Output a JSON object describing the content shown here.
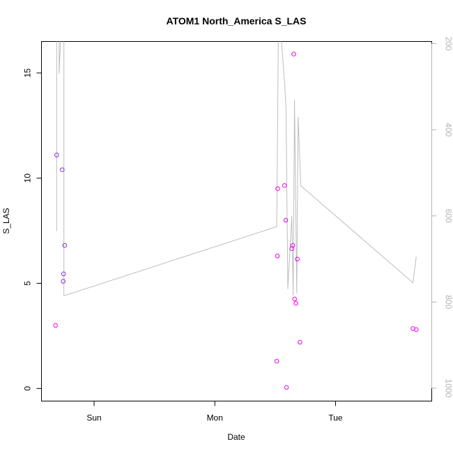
{
  "chart_data": {
    "type": "scatter",
    "title": "ATOM1 North_America S_LAS",
    "xlabel": "Date",
    "ylabel": "S_LAS",
    "x_ticks": [
      {
        "value": 0.25,
        "label": "Sun"
      },
      {
        "value": 1.25,
        "label": "Mon"
      },
      {
        "value": 2.25,
        "label": "Tue"
      }
    ],
    "xlim": [
      -0.186,
      3.047
    ],
    "ylim": [
      -0.6,
      16.5
    ],
    "y_ticks": [
      0,
      5,
      10,
      15
    ],
    "y2_ticks": [
      200,
      400,
      600,
      800,
      1000
    ],
    "y2lim": [
      1030,
      195
    ],
    "y2_inverted": true,
    "colors": {
      "line": "#bdbdbd",
      "point_a": "#8a2be2",
      "point_b": "#ee00ee"
    },
    "points": [
      {
        "x": -0.07,
        "y": 3.0,
        "color": "#ee00ee"
      },
      {
        "x": -0.06,
        "y": 11.1,
        "color": "#8a2be2"
      },
      {
        "x": -0.014,
        "y": 10.4,
        "color": "#8a2be2"
      },
      {
        "x": -0.006,
        "y": 5.1,
        "color": "#8a2be2"
      },
      {
        "x": -0.003,
        "y": 5.45,
        "color": "#8a2be2"
      },
      {
        "x": 0.006,
        "y": 6.8,
        "color": "#8a2be2"
      },
      {
        "x": 1.763,
        "y": 1.3,
        "color": "#ee00ee"
      },
      {
        "x": 1.768,
        "y": 6.3,
        "color": "#ee00ee"
      },
      {
        "x": 1.771,
        "y": 9.5,
        "color": "#ee00ee"
      },
      {
        "x": 1.827,
        "y": 9.65,
        "color": "#ee00ee"
      },
      {
        "x": 1.838,
        "y": 8.0,
        "color": "#ee00ee"
      },
      {
        "x": 1.844,
        "y": 0.05,
        "color": "#ee00ee"
      },
      {
        "x": 1.888,
        "y": 6.65,
        "color": "#ee00ee"
      },
      {
        "x": 1.896,
        "y": 6.8,
        "color": "#ee00ee"
      },
      {
        "x": 1.904,
        "y": 15.9,
        "color": "#ee00ee"
      },
      {
        "x": 1.911,
        "y": 4.25,
        "color": "#ee00ee"
      },
      {
        "x": 1.922,
        "y": 4.05,
        "color": "#ee00ee"
      },
      {
        "x": 1.934,
        "y": 6.15,
        "color": "#ee00ee"
      },
      {
        "x": 1.955,
        "y": 2.2,
        "color": "#ee00ee"
      },
      {
        "x": 2.891,
        "y": 2.85,
        "color": "#ee00ee"
      },
      {
        "x": 2.919,
        "y": 2.8,
        "color": "#ee00ee"
      }
    ],
    "line": [
      {
        "x": -0.06,
        "y2": 635
      },
      {
        "x": -0.06,
        "y2": 100
      },
      {
        "x": -0.04,
        "y2": 100
      },
      {
        "x": -0.04,
        "y2": 270
      },
      {
        "x": -0.014,
        "y2": 100
      },
      {
        "x": 0.0,
        "y2": 100
      },
      {
        "x": 0.0,
        "y2": 785
      },
      {
        "x": 0.006,
        "y2": 785
      },
      {
        "x": 1.763,
        "y2": 625
      },
      {
        "x": 1.776,
        "y2": 200
      },
      {
        "x": 1.79,
        "y2": 150
      },
      {
        "x": 1.83,
        "y2": 300
      },
      {
        "x": 1.84,
        "y2": 350
      },
      {
        "x": 1.855,
        "y2": 770
      },
      {
        "x": 1.888,
        "y2": 600
      },
      {
        "x": 1.899,
        "y2": 785
      },
      {
        "x": 1.91,
        "y2": 330
      },
      {
        "x": 1.929,
        "y2": 780
      },
      {
        "x": 1.94,
        "y2": 370
      },
      {
        "x": 1.962,
        "y2": 530
      },
      {
        "x": 2.891,
        "y2": 755
      },
      {
        "x": 2.919,
        "y2": 695
      }
    ]
  }
}
